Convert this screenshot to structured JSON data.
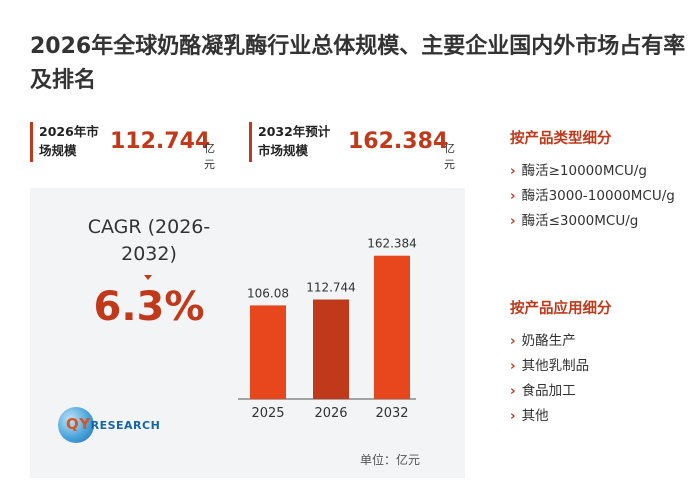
{
  "title": "2026年全球奶酪凝乳酶行业总体规模、主要企业国内外市场占有率及排名",
  "stats": [
    {
      "label": "2026年市场规模",
      "value": "112.744",
      "unit": "亿元"
    },
    {
      "label": "2032年预计市场规模",
      "value": "162.384",
      "unit": "亿元"
    }
  ],
  "cagr": {
    "label": "CAGR (2026-2032)",
    "value": "6.3%"
  },
  "logo": {
    "text_accent": "QY",
    "text_rest": "RESEARCH"
  },
  "unit_note": "单位：亿元",
  "chart_data": {
    "type": "bar",
    "categories": [
      "2025",
      "2026",
      "2032"
    ],
    "values": [
      106.08,
      112.744,
      162.384
    ],
    "value_labels": [
      "106.08",
      "112.744",
      "162.384"
    ],
    "colors": [
      "#e8461d",
      "#c0391b",
      "#e8461d"
    ],
    "ylim": [
      0,
      170
    ]
  },
  "segments": {
    "by_type": {
      "title": "按产品类型细分",
      "items": [
        "酶活≥10000MCU/g",
        "酶活3000-10000MCU/g",
        "酶活≤3000MCU/g"
      ]
    },
    "by_application": {
      "title": "按产品应用细分",
      "items": [
        "奶酪生产",
        "其他乳制品",
        "食品加工",
        "其他"
      ]
    }
  },
  "icons": {
    "bullet": "chevron-right-icon"
  }
}
